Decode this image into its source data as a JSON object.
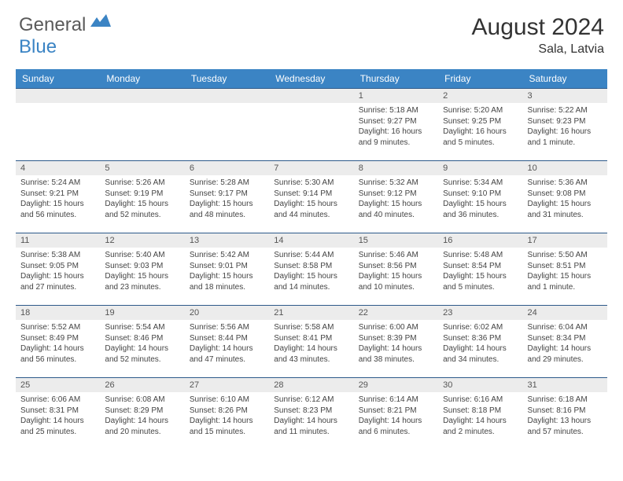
{
  "logo": {
    "general": "General",
    "blue": "Blue"
  },
  "title": "August 2024",
  "location": "Sala, Latvia",
  "weekdays": [
    "Sunday",
    "Monday",
    "Tuesday",
    "Wednesday",
    "Thursday",
    "Friday",
    "Saturday"
  ],
  "colors": {
    "headerBg": "#3b84c4",
    "headerText": "#ffffff",
    "dayNumBg": "#ececec",
    "dayNumText": "#555555",
    "bodyText": "#444444",
    "border": "#2d5a8a",
    "titleText": "#333333",
    "logoGray": "#5a5a5a",
    "logoBlue": "#3b84c4"
  },
  "weeks": [
    [
      {
        "day": "",
        "sunrise": "",
        "sunset": "",
        "daylight": ""
      },
      {
        "day": "",
        "sunrise": "",
        "sunset": "",
        "daylight": ""
      },
      {
        "day": "",
        "sunrise": "",
        "sunset": "",
        "daylight": ""
      },
      {
        "day": "",
        "sunrise": "",
        "sunset": "",
        "daylight": ""
      },
      {
        "day": "1",
        "sunrise": "Sunrise: 5:18 AM",
        "sunset": "Sunset: 9:27 PM",
        "daylight": "Daylight: 16 hours and 9 minutes."
      },
      {
        "day": "2",
        "sunrise": "Sunrise: 5:20 AM",
        "sunset": "Sunset: 9:25 PM",
        "daylight": "Daylight: 16 hours and 5 minutes."
      },
      {
        "day": "3",
        "sunrise": "Sunrise: 5:22 AM",
        "sunset": "Sunset: 9:23 PM",
        "daylight": "Daylight: 16 hours and 1 minute."
      }
    ],
    [
      {
        "day": "4",
        "sunrise": "Sunrise: 5:24 AM",
        "sunset": "Sunset: 9:21 PM",
        "daylight": "Daylight: 15 hours and 56 minutes."
      },
      {
        "day": "5",
        "sunrise": "Sunrise: 5:26 AM",
        "sunset": "Sunset: 9:19 PM",
        "daylight": "Daylight: 15 hours and 52 minutes."
      },
      {
        "day": "6",
        "sunrise": "Sunrise: 5:28 AM",
        "sunset": "Sunset: 9:17 PM",
        "daylight": "Daylight: 15 hours and 48 minutes."
      },
      {
        "day": "7",
        "sunrise": "Sunrise: 5:30 AM",
        "sunset": "Sunset: 9:14 PM",
        "daylight": "Daylight: 15 hours and 44 minutes."
      },
      {
        "day": "8",
        "sunrise": "Sunrise: 5:32 AM",
        "sunset": "Sunset: 9:12 PM",
        "daylight": "Daylight: 15 hours and 40 minutes."
      },
      {
        "day": "9",
        "sunrise": "Sunrise: 5:34 AM",
        "sunset": "Sunset: 9:10 PM",
        "daylight": "Daylight: 15 hours and 36 minutes."
      },
      {
        "day": "10",
        "sunrise": "Sunrise: 5:36 AM",
        "sunset": "Sunset: 9:08 PM",
        "daylight": "Daylight: 15 hours and 31 minutes."
      }
    ],
    [
      {
        "day": "11",
        "sunrise": "Sunrise: 5:38 AM",
        "sunset": "Sunset: 9:05 PM",
        "daylight": "Daylight: 15 hours and 27 minutes."
      },
      {
        "day": "12",
        "sunrise": "Sunrise: 5:40 AM",
        "sunset": "Sunset: 9:03 PM",
        "daylight": "Daylight: 15 hours and 23 minutes."
      },
      {
        "day": "13",
        "sunrise": "Sunrise: 5:42 AM",
        "sunset": "Sunset: 9:01 PM",
        "daylight": "Daylight: 15 hours and 18 minutes."
      },
      {
        "day": "14",
        "sunrise": "Sunrise: 5:44 AM",
        "sunset": "Sunset: 8:58 PM",
        "daylight": "Daylight: 15 hours and 14 minutes."
      },
      {
        "day": "15",
        "sunrise": "Sunrise: 5:46 AM",
        "sunset": "Sunset: 8:56 PM",
        "daylight": "Daylight: 15 hours and 10 minutes."
      },
      {
        "day": "16",
        "sunrise": "Sunrise: 5:48 AM",
        "sunset": "Sunset: 8:54 PM",
        "daylight": "Daylight: 15 hours and 5 minutes."
      },
      {
        "day": "17",
        "sunrise": "Sunrise: 5:50 AM",
        "sunset": "Sunset: 8:51 PM",
        "daylight": "Daylight: 15 hours and 1 minute."
      }
    ],
    [
      {
        "day": "18",
        "sunrise": "Sunrise: 5:52 AM",
        "sunset": "Sunset: 8:49 PM",
        "daylight": "Daylight: 14 hours and 56 minutes."
      },
      {
        "day": "19",
        "sunrise": "Sunrise: 5:54 AM",
        "sunset": "Sunset: 8:46 PM",
        "daylight": "Daylight: 14 hours and 52 minutes."
      },
      {
        "day": "20",
        "sunrise": "Sunrise: 5:56 AM",
        "sunset": "Sunset: 8:44 PM",
        "daylight": "Daylight: 14 hours and 47 minutes."
      },
      {
        "day": "21",
        "sunrise": "Sunrise: 5:58 AM",
        "sunset": "Sunset: 8:41 PM",
        "daylight": "Daylight: 14 hours and 43 minutes."
      },
      {
        "day": "22",
        "sunrise": "Sunrise: 6:00 AM",
        "sunset": "Sunset: 8:39 PM",
        "daylight": "Daylight: 14 hours and 38 minutes."
      },
      {
        "day": "23",
        "sunrise": "Sunrise: 6:02 AM",
        "sunset": "Sunset: 8:36 PM",
        "daylight": "Daylight: 14 hours and 34 minutes."
      },
      {
        "day": "24",
        "sunrise": "Sunrise: 6:04 AM",
        "sunset": "Sunset: 8:34 PM",
        "daylight": "Daylight: 14 hours and 29 minutes."
      }
    ],
    [
      {
        "day": "25",
        "sunrise": "Sunrise: 6:06 AM",
        "sunset": "Sunset: 8:31 PM",
        "daylight": "Daylight: 14 hours and 25 minutes."
      },
      {
        "day": "26",
        "sunrise": "Sunrise: 6:08 AM",
        "sunset": "Sunset: 8:29 PM",
        "daylight": "Daylight: 14 hours and 20 minutes."
      },
      {
        "day": "27",
        "sunrise": "Sunrise: 6:10 AM",
        "sunset": "Sunset: 8:26 PM",
        "daylight": "Daylight: 14 hours and 15 minutes."
      },
      {
        "day": "28",
        "sunrise": "Sunrise: 6:12 AM",
        "sunset": "Sunset: 8:23 PM",
        "daylight": "Daylight: 14 hours and 11 minutes."
      },
      {
        "day": "29",
        "sunrise": "Sunrise: 6:14 AM",
        "sunset": "Sunset: 8:21 PM",
        "daylight": "Daylight: 14 hours and 6 minutes."
      },
      {
        "day": "30",
        "sunrise": "Sunrise: 6:16 AM",
        "sunset": "Sunset: 8:18 PM",
        "daylight": "Daylight: 14 hours and 2 minutes."
      },
      {
        "day": "31",
        "sunrise": "Sunrise: 6:18 AM",
        "sunset": "Sunset: 8:16 PM",
        "daylight": "Daylight: 13 hours and 57 minutes."
      }
    ]
  ]
}
